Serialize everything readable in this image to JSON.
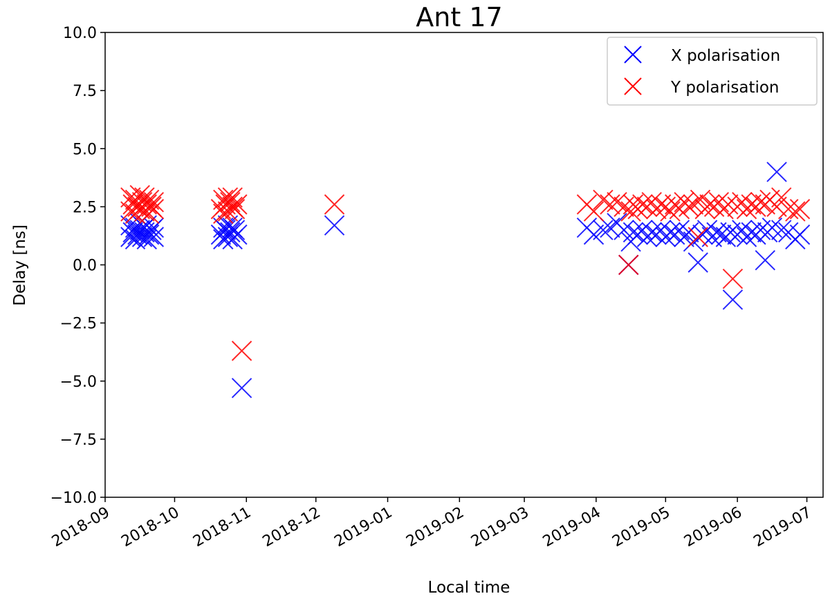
{
  "chart_data": {
    "type": "scatter",
    "title": "Ant 17",
    "xlabel": "Local time",
    "ylabel": "Delay [ns]",
    "ylim": [
      -10,
      10
    ],
    "xlim": [
      "2018-09-01",
      "2019-07-08"
    ],
    "yticks": [
      -10,
      -7.5,
      -5,
      -2.5,
      0,
      2.5,
      5,
      7.5,
      10
    ],
    "ytick_labels": [
      "−10.0",
      "−7.5",
      "−5.0",
      "−2.5",
      "0.0",
      "2.5",
      "5.0",
      "7.5",
      "10.0"
    ],
    "xticks": [
      "2018-09-01",
      "2018-10-01",
      "2018-11-01",
      "2018-12-01",
      "2019-01-01",
      "2019-02-01",
      "2019-03-01",
      "2019-04-01",
      "2019-05-01",
      "2019-06-01",
      "2019-07-01"
    ],
    "xtick_labels": [
      "2018-09",
      "2018-10",
      "2018-11",
      "2018-12",
      "2019-01",
      "2019-02",
      "2019-03",
      "2019-04",
      "2019-05",
      "2019-06",
      "2019-07"
    ],
    "marker": "x",
    "legend_position": "top-right",
    "grid": false,
    "series": [
      {
        "name": "X polarisation",
        "color": "#0000ff",
        "points": [
          [
            "2018-09-12",
            1.2
          ],
          [
            "2018-09-12",
            1.7
          ],
          [
            "2018-09-13",
            1.4
          ],
          [
            "2018-09-14",
            1.1
          ],
          [
            "2018-09-14",
            1.6
          ],
          [
            "2018-09-15",
            1.3
          ],
          [
            "2018-09-16",
            1.8
          ],
          [
            "2018-09-16",
            1.5
          ],
          [
            "2018-09-17",
            1.2
          ],
          [
            "2018-09-18",
            1.6
          ],
          [
            "2018-09-18",
            1.4
          ],
          [
            "2018-09-19",
            1.1
          ],
          [
            "2018-09-19",
            1.7
          ],
          [
            "2018-09-20",
            1.3
          ],
          [
            "2018-09-21",
            1.5
          ],
          [
            "2018-09-22",
            1.6
          ],
          [
            "2018-09-22",
            1.2
          ],
          [
            "2018-10-21",
            1.3
          ],
          [
            "2018-10-22",
            1.6
          ],
          [
            "2018-10-22",
            1.1
          ],
          [
            "2018-10-23",
            1.5
          ],
          [
            "2018-10-24",
            1.7
          ],
          [
            "2018-10-24",
            1.2
          ],
          [
            "2018-10-25",
            1.4
          ],
          [
            "2018-10-26",
            1.6
          ],
          [
            "2018-10-26",
            1.1
          ],
          [
            "2018-10-27",
            1.5
          ],
          [
            "2018-10-28",
            1.3
          ],
          [
            "2018-10-30",
            -5.3
          ],
          [
            "2018-12-09",
            1.7
          ],
          [
            "2019-03-28",
            1.6
          ],
          [
            "2019-03-31",
            1.3
          ],
          [
            "2019-04-04",
            1.5
          ],
          [
            "2019-04-07",
            1.6
          ],
          [
            "2019-04-10",
            1.8
          ],
          [
            "2019-04-13",
            1.5
          ],
          [
            "2019-04-15",
            0.0
          ],
          [
            "2019-04-16",
            1.0
          ],
          [
            "2019-04-17",
            1.4
          ],
          [
            "2019-04-19",
            1.3
          ],
          [
            "2019-04-21",
            1.5
          ],
          [
            "2019-04-23",
            1.2
          ],
          [
            "2019-04-25",
            1.4
          ],
          [
            "2019-04-27",
            1.3
          ],
          [
            "2019-04-29",
            1.5
          ],
          [
            "2019-05-01",
            1.2
          ],
          [
            "2019-05-03",
            1.4
          ],
          [
            "2019-05-05",
            1.3
          ],
          [
            "2019-05-07",
            1.5
          ],
          [
            "2019-05-09",
            1.2
          ],
          [
            "2019-05-11",
            1.4
          ],
          [
            "2019-05-13",
            1.0
          ],
          [
            "2019-05-15",
            0.1
          ],
          [
            "2019-05-17",
            1.3
          ],
          [
            "2019-05-19",
            1.5
          ],
          [
            "2019-05-21",
            1.2
          ],
          [
            "2019-05-23",
            1.4
          ],
          [
            "2019-05-25",
            1.3
          ],
          [
            "2019-05-27",
            1.2
          ],
          [
            "2019-05-29",
            1.4
          ],
          [
            "2019-05-30",
            -1.5
          ],
          [
            "2019-06-01",
            1.3
          ],
          [
            "2019-06-03",
            1.5
          ],
          [
            "2019-06-05",
            1.2
          ],
          [
            "2019-06-07",
            1.4
          ],
          [
            "2019-06-09",
            1.3
          ],
          [
            "2019-06-11",
            1.5
          ],
          [
            "2019-06-13",
            0.2
          ],
          [
            "2019-06-14",
            1.4
          ],
          [
            "2019-06-16",
            1.6
          ],
          [
            "2019-06-18",
            4.0
          ],
          [
            "2019-06-20",
            1.5
          ],
          [
            "2019-06-23",
            1.4
          ],
          [
            "2019-06-26",
            1.1
          ],
          [
            "2019-06-28",
            1.3
          ]
        ]
      },
      {
        "name": "Y polarisation",
        "color": "#ff0000",
        "points": [
          [
            "2018-09-12",
            2.3
          ],
          [
            "2018-09-12",
            2.9
          ],
          [
            "2018-09-13",
            2.6
          ],
          [
            "2018-09-14",
            2.2
          ],
          [
            "2018-09-14",
            2.8
          ],
          [
            "2018-09-15",
            2.5
          ],
          [
            "2018-09-16",
            3.0
          ],
          [
            "2018-09-16",
            2.4
          ],
          [
            "2018-09-17",
            2.7
          ],
          [
            "2018-09-18",
            2.3
          ],
          [
            "2018-09-18",
            2.9
          ],
          [
            "2018-09-19",
            2.6
          ],
          [
            "2018-09-20",
            2.2
          ],
          [
            "2018-09-20",
            2.8
          ],
          [
            "2018-09-21",
            2.5
          ],
          [
            "2018-09-22",
            2.7
          ],
          [
            "2018-09-22",
            2.4
          ],
          [
            "2018-10-21",
            2.4
          ],
          [
            "2018-10-22",
            2.8
          ],
          [
            "2018-10-22",
            2.2
          ],
          [
            "2018-10-23",
            2.6
          ],
          [
            "2018-10-24",
            2.9
          ],
          [
            "2018-10-24",
            2.3
          ],
          [
            "2018-10-25",
            2.7
          ],
          [
            "2018-10-26",
            2.5
          ],
          [
            "2018-10-26",
            2.9
          ],
          [
            "2018-10-27",
            2.4
          ],
          [
            "2018-10-28",
            2.6
          ],
          [
            "2018-10-30",
            -3.7
          ],
          [
            "2018-12-09",
            2.6
          ],
          [
            "2019-03-28",
            2.6
          ],
          [
            "2019-03-31",
            2.3
          ],
          [
            "2019-04-04",
            2.8
          ],
          [
            "2019-04-07",
            2.6
          ],
          [
            "2019-04-10",
            2.7
          ],
          [
            "2019-04-13",
            2.5
          ],
          [
            "2019-04-15",
            0.0
          ],
          [
            "2019-04-16",
            2.3
          ],
          [
            "2019-04-17",
            2.6
          ],
          [
            "2019-04-19",
            2.4
          ],
          [
            "2019-04-21",
            2.6
          ],
          [
            "2019-04-23",
            2.5
          ],
          [
            "2019-04-25",
            2.7
          ],
          [
            "2019-04-27",
            2.4
          ],
          [
            "2019-04-29",
            2.6
          ],
          [
            "2019-05-01",
            2.5
          ],
          [
            "2019-05-03",
            2.3
          ],
          [
            "2019-05-05",
            2.6
          ],
          [
            "2019-05-07",
            2.4
          ],
          [
            "2019-05-09",
            2.7
          ],
          [
            "2019-05-11",
            2.5
          ],
          [
            "2019-05-13",
            2.6
          ],
          [
            "2019-05-15",
            1.2
          ],
          [
            "2019-05-16",
            2.8
          ],
          [
            "2019-05-18",
            2.4
          ],
          [
            "2019-05-20",
            2.6
          ],
          [
            "2019-05-22",
            2.5
          ],
          [
            "2019-05-24",
            2.7
          ],
          [
            "2019-05-26",
            2.4
          ],
          [
            "2019-05-28",
            2.6
          ],
          [
            "2019-05-30",
            -0.6
          ],
          [
            "2019-06-01",
            2.5
          ],
          [
            "2019-06-03",
            2.7
          ],
          [
            "2019-06-05",
            2.4
          ],
          [
            "2019-06-07",
            2.6
          ],
          [
            "2019-06-09",
            2.5
          ],
          [
            "2019-06-11",
            2.7
          ],
          [
            "2019-06-13",
            2.6
          ],
          [
            "2019-06-15",
            2.8
          ],
          [
            "2019-06-18",
            2.5
          ],
          [
            "2019-06-20",
            2.9
          ],
          [
            "2019-06-23",
            2.4
          ],
          [
            "2019-06-26",
            2.3
          ],
          [
            "2019-06-28",
            2.4
          ]
        ]
      }
    ]
  }
}
